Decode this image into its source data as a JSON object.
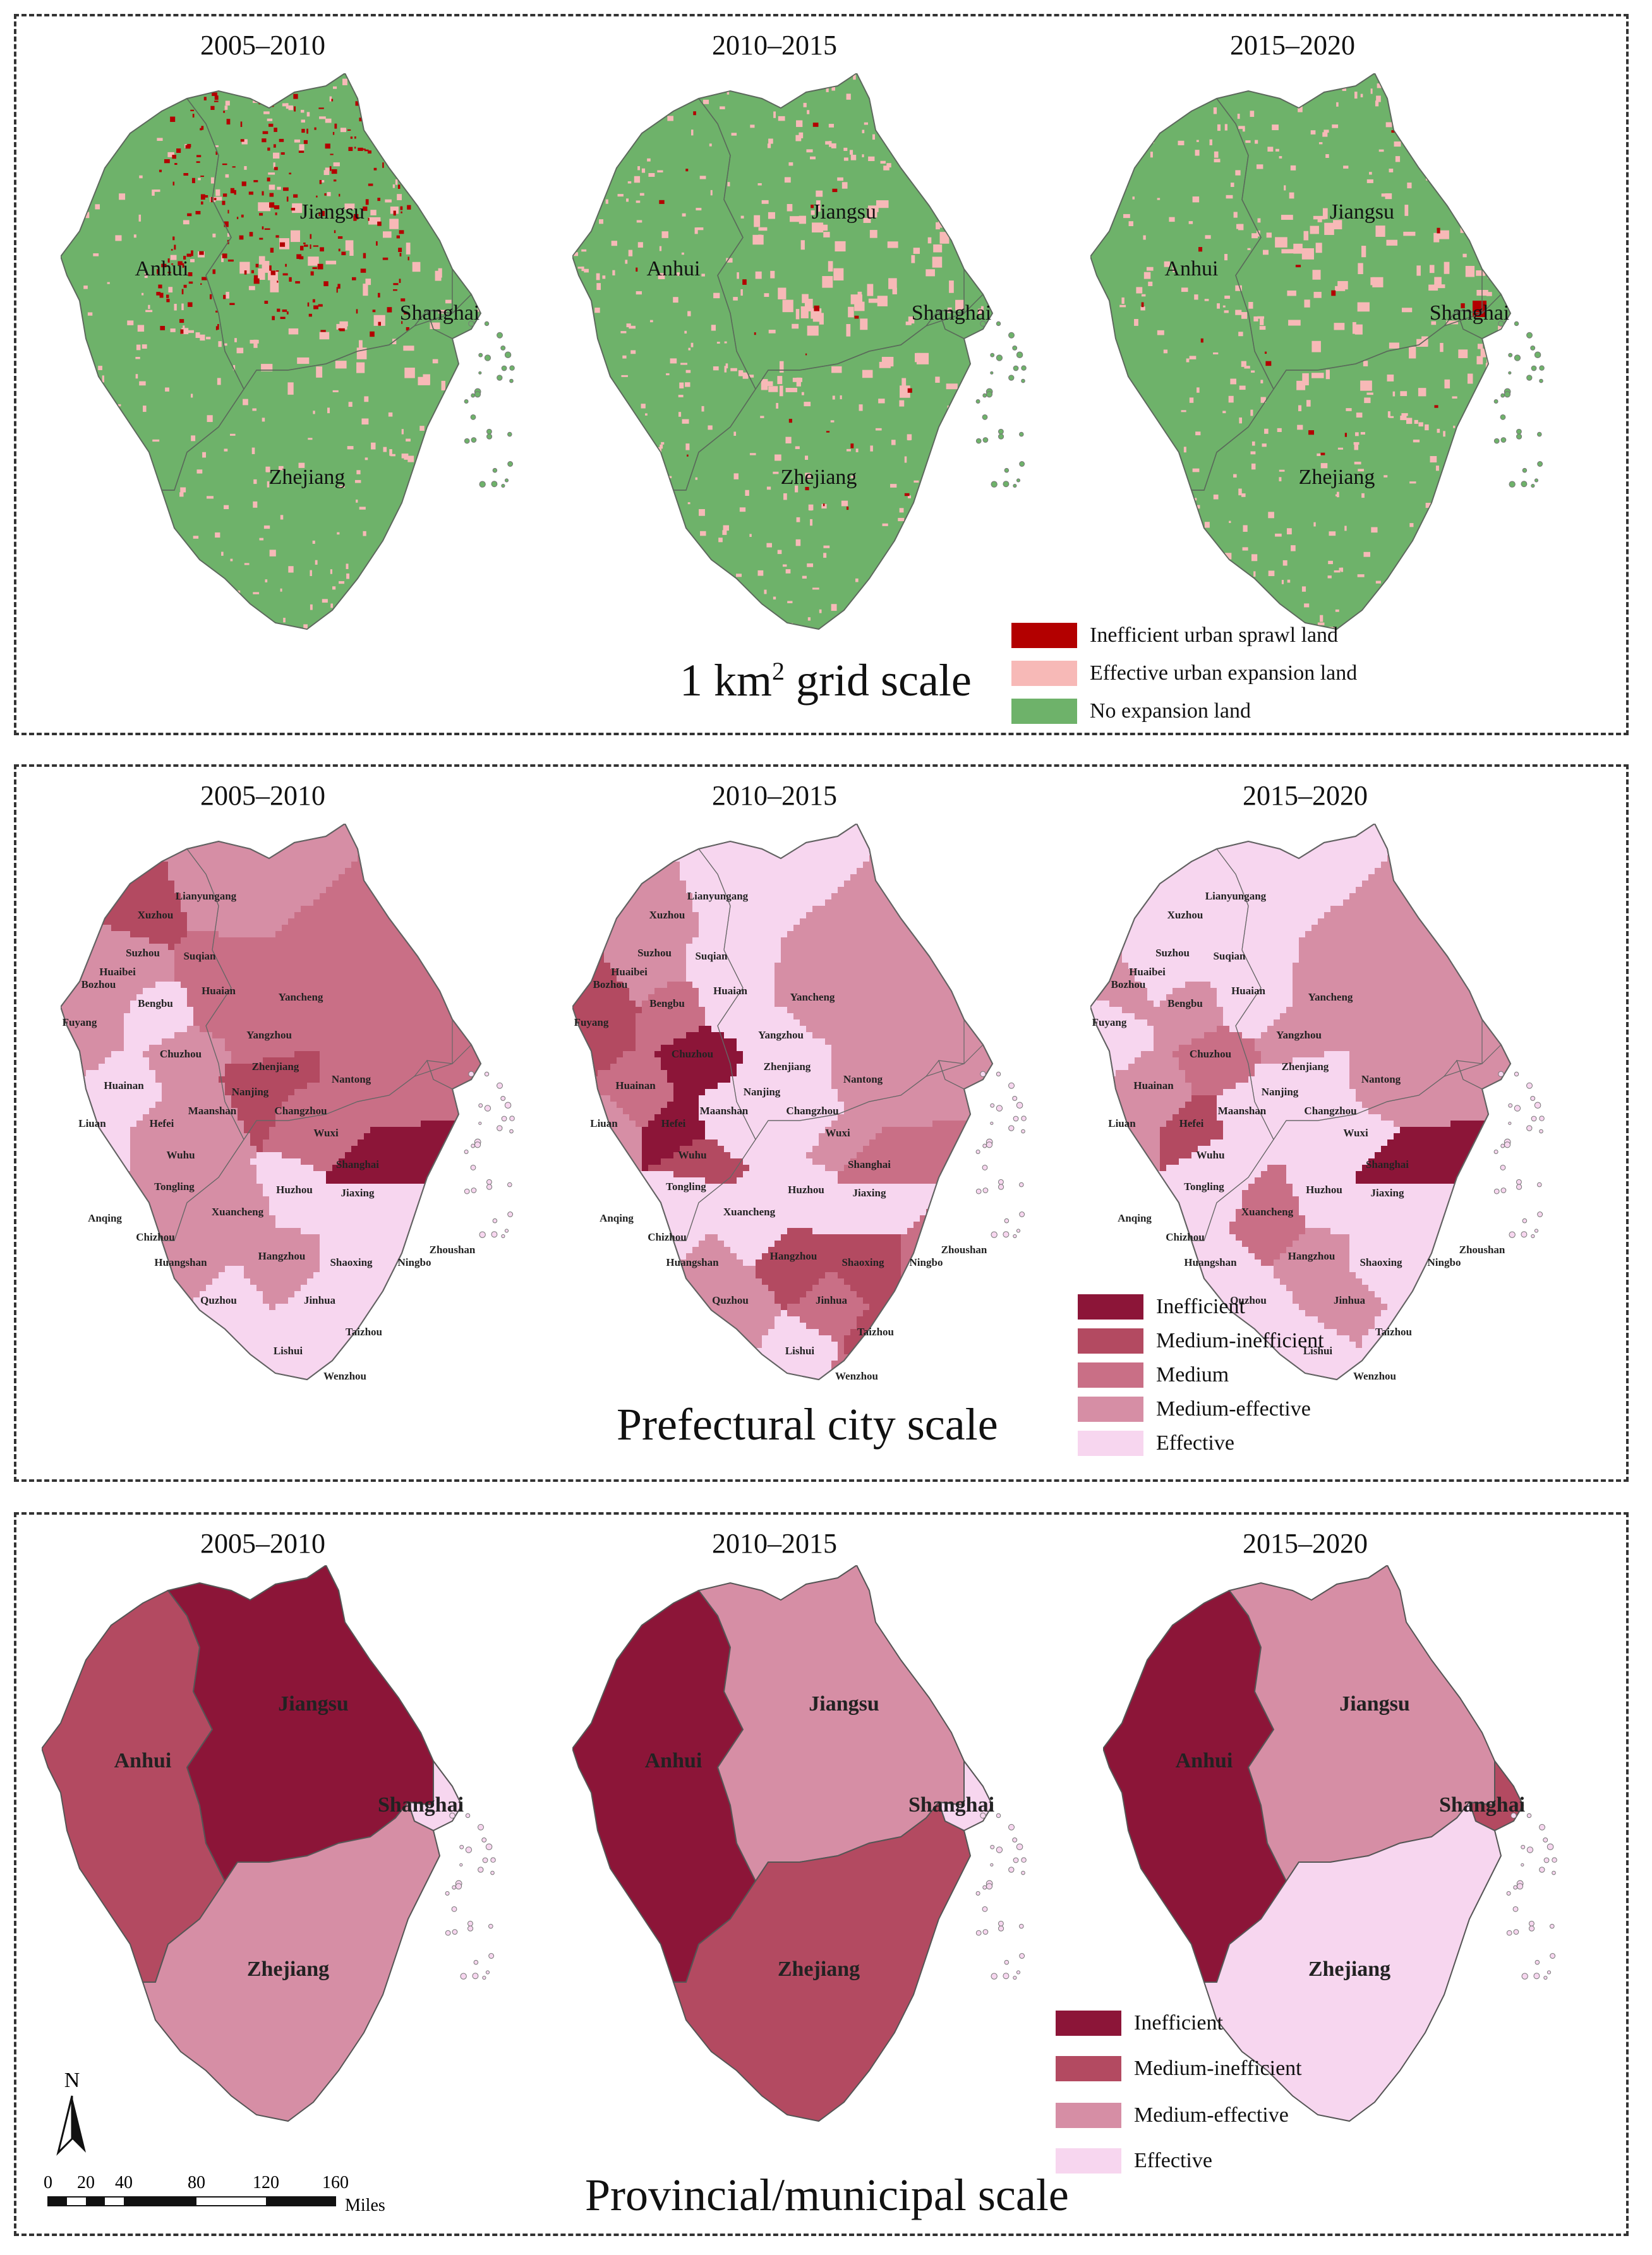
{
  "periods": [
    "2005–2010",
    "2010–2015",
    "2015–2020"
  ],
  "colors": {
    "inefficient_sprawl": "#b30000",
    "effective_expansion": "#f7b9b7",
    "no_expansion": "#6eb26a",
    "inefficient": "#8c1538",
    "medium_inefficient": "#b34a61",
    "medium": "#c96f86",
    "medium_effective": "#d68ea5",
    "effective": "#f7d6ef"
  },
  "grid_panel": {
    "title": "1 km",
    "title_sup": "2",
    "title_suffix": " grid scale",
    "legend": [
      {
        "label": "Inefficient urban sprawl land",
        "color": "#b30000"
      },
      {
        "label": "Effective urban expansion land",
        "color": "#f7b9b7"
      },
      {
        "label": "No expansion land",
        "color": "#6eb26a"
      }
    ],
    "province_labels": [
      "Jiangsu",
      "Anhui",
      "Shanghai",
      "Zhejiang"
    ]
  },
  "city_panel": {
    "title": "Prefectural city scale",
    "legend": [
      {
        "label": "Inefficient",
        "color": "#8c1538"
      },
      {
        "label": "Medium-inefficient",
        "color": "#b34a61"
      },
      {
        "label": "Medium",
        "color": "#c96f86"
      },
      {
        "label": "Medium-effective",
        "color": "#d68ea5"
      },
      {
        "label": "Effective",
        "color": "#f7d6ef"
      }
    ],
    "city_labels": [
      "Lianyungang",
      "Xuzhou",
      "Suzhou",
      "Huaibei",
      "Suqian",
      "Bozhou",
      "Huaian",
      "Yancheng",
      "Bengbu",
      "Fuyang",
      "Yangzhou",
      "Chuzhou",
      "Huainan",
      "Zhenjiang",
      "Nantong",
      "Nanjing",
      "Liuan",
      "Hefei",
      "Maanshan",
      "Changzhou",
      "Wuxi",
      "Wuhu",
      "Shanghai",
      "Tongling",
      "Huzhou",
      "Jiaxing",
      "Anqing",
      "Xuancheng",
      "Chizhou",
      "Zhoushan",
      "Huangshan",
      "Hangzhou",
      "Shaoxing",
      "Ningbo",
      "Jinhua",
      "Quzhou",
      "Taizhou",
      "Lishui",
      "Wenzhou"
    ]
  },
  "province_panel": {
    "title": "Provincial/municipal scale",
    "legend": [
      {
        "label": "Inefficient",
        "color": "#8c1538"
      },
      {
        "label": "Medium-inefficient",
        "color": "#b34a61"
      },
      {
        "label": "Medium-effective",
        "color": "#d68ea5"
      },
      {
        "label": "Effective",
        "color": "#f7d6ef"
      }
    ],
    "province_labels": [
      "Jiangsu",
      "Anhui",
      "Shanghai",
      "Zhejiang"
    ],
    "classes": [
      {
        "period": "2005–2010",
        "Anhui": "Medium-inefficient",
        "Jiangsu": "Inefficient",
        "Shanghai": "Effective",
        "Zhejiang": "Medium-effective"
      },
      {
        "period": "2010–2015",
        "Anhui": "Inefficient",
        "Jiangsu": "Medium-effective",
        "Shanghai": "Effective",
        "Zhejiang": "Medium-inefficient"
      },
      {
        "period": "2015–2020",
        "Anhui": "Inefficient",
        "Jiangsu": "Medium-effective",
        "Shanghai": "Medium-inefficient",
        "Zhejiang": "Effective"
      }
    ]
  },
  "north_arrow": {
    "label": "N"
  },
  "scale_bar": {
    "ticks": [
      "0",
      "20",
      "40",
      "80",
      "120",
      "160"
    ],
    "unit": "Miles"
  }
}
